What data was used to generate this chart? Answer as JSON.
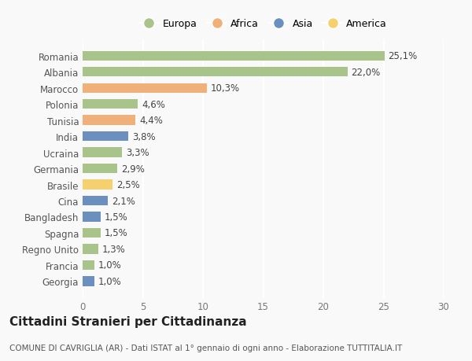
{
  "categories": [
    "Romania",
    "Albania",
    "Marocco",
    "Polonia",
    "Tunisia",
    "India",
    "Ucraina",
    "Germania",
    "Brasile",
    "Cina",
    "Bangladesh",
    "Spagna",
    "Regno Unito",
    "Francia",
    "Georgia"
  ],
  "values": [
    25.1,
    22.0,
    10.3,
    4.6,
    4.4,
    3.8,
    3.3,
    2.9,
    2.5,
    2.1,
    1.5,
    1.5,
    1.3,
    1.0,
    1.0
  ],
  "labels": [
    "25,1%",
    "22,0%",
    "10,3%",
    "4,6%",
    "4,4%",
    "3,8%",
    "3,3%",
    "2,9%",
    "2,5%",
    "2,1%",
    "1,5%",
    "1,5%",
    "1,3%",
    "1,0%",
    "1,0%"
  ],
  "colors": [
    "#a8c48a",
    "#a8c48a",
    "#f0b07a",
    "#a8c48a",
    "#f0b07a",
    "#6b8fbf",
    "#a8c48a",
    "#a8c48a",
    "#f5d06e",
    "#6b8fbf",
    "#6b8fbf",
    "#a8c48a",
    "#a8c48a",
    "#a8c48a",
    "#6b8fbf"
  ],
  "legend_labels": [
    "Europa",
    "Africa",
    "Asia",
    "America"
  ],
  "legend_colors": [
    "#a8c48a",
    "#f0b07a",
    "#6b8fbf",
    "#f5d06e"
  ],
  "xlim": [
    0,
    30
  ],
  "xticks": [
    0,
    5,
    10,
    15,
    20,
    25,
    30
  ],
  "title": "Cittadini Stranieri per Cittadinanza",
  "subtitle": "COMUNE DI CAVRIGLIA (AR) - Dati ISTAT al 1° gennaio di ogni anno - Elaborazione TUTTITALIA.IT",
  "bg_color": "#f9f9f9",
  "bar_height": 0.6,
  "label_fontsize": 8.5,
  "ytick_fontsize": 8.5,
  "xtick_fontsize": 8.5,
  "title_fontsize": 11,
  "subtitle_fontsize": 7.5,
  "legend_fontsize": 9
}
